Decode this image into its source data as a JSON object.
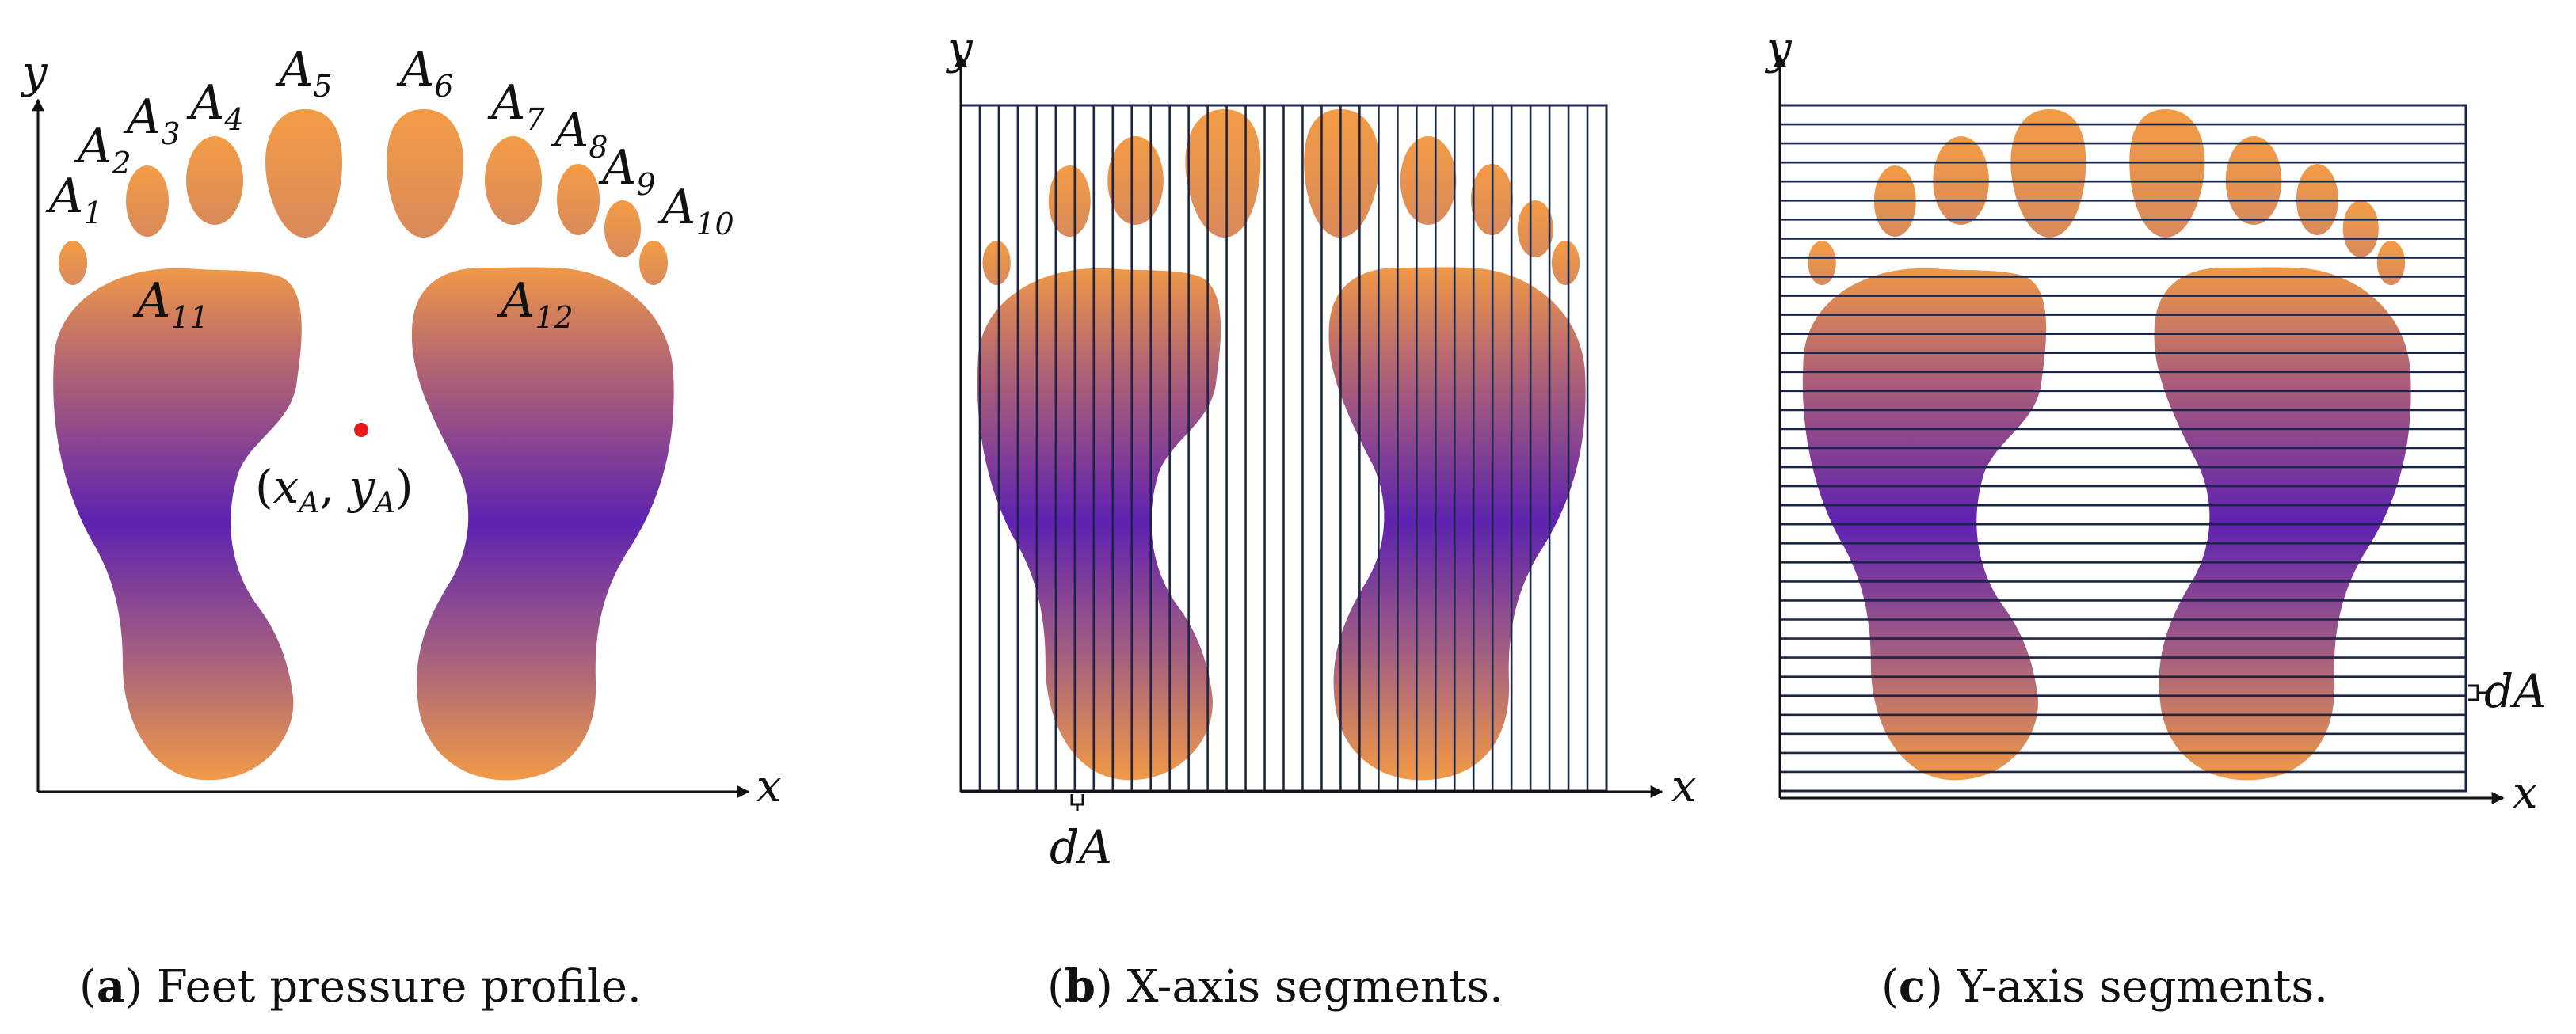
{
  "panel_a": {
    "axis_x": "x",
    "axis_y": "y",
    "areas": [
      {
        "base": "A",
        "sub": "1"
      },
      {
        "base": "A",
        "sub": "2"
      },
      {
        "base": "A",
        "sub": "3"
      },
      {
        "base": "A",
        "sub": "4"
      },
      {
        "base": "A",
        "sub": "5"
      },
      {
        "base": "A",
        "sub": "6"
      },
      {
        "base": "A",
        "sub": "7"
      },
      {
        "base": "A",
        "sub": "8"
      },
      {
        "base": "A",
        "sub": "9"
      },
      {
        "base": "A",
        "sub": "10"
      },
      {
        "base": "A",
        "sub": "11"
      },
      {
        "base": "A",
        "sub": "12"
      }
    ],
    "centroid": {
      "open": "(",
      "x": "x",
      "x_sub": "A",
      "comma": ", ",
      "y": "y",
      "y_sub": "A",
      "close": ")",
      "dot_color": "#e81a1a"
    },
    "caption": {
      "letter": "a",
      "text": " Feet pressure profile."
    }
  },
  "panel_b": {
    "axis_x": "x",
    "axis_y": "y",
    "segment_label": "dA",
    "caption": {
      "letter": "b",
      "text": " X-axis segments."
    }
  },
  "panel_c": {
    "axis_x": "x",
    "axis_y": "y",
    "segment_label": "dA",
    "caption": {
      "letter": "c",
      "text": " Y-axis segments."
    }
  },
  "colors": {
    "foot_top": "#f39c45",
    "foot_mid_upper": "#b96a6e",
    "foot_mid": "#5e22b0",
    "foot_bottom": "#f39c45",
    "grid_line": "#1b2548",
    "axis": "#111111"
  }
}
